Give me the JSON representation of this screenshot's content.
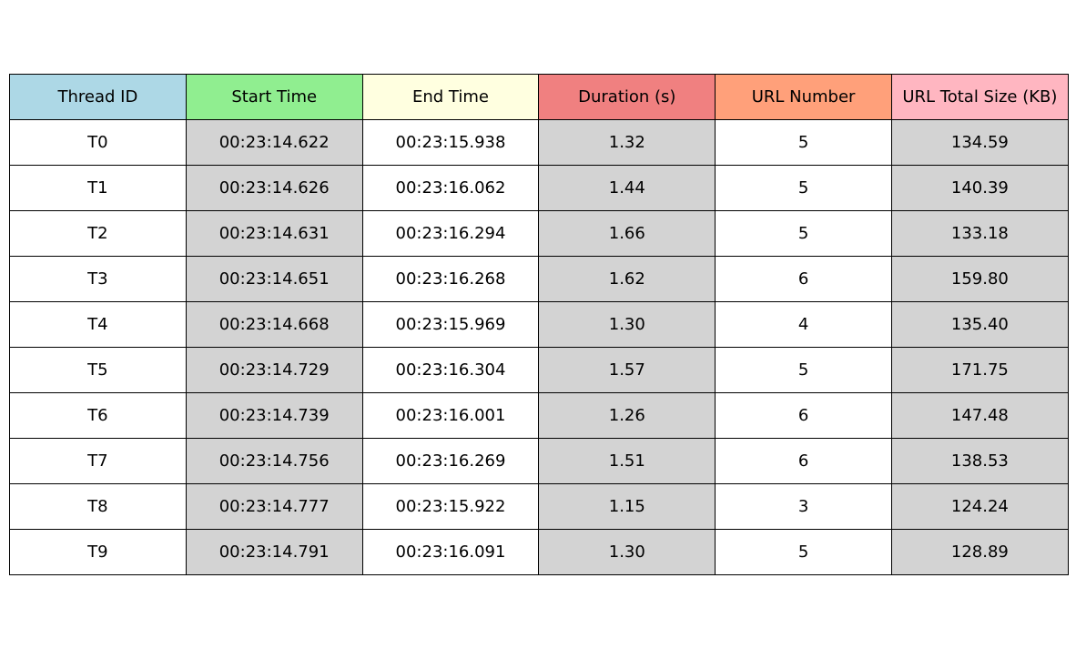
{
  "chart_data": {
    "type": "table",
    "columns": [
      {
        "label": "Thread ID",
        "header_color": "#add8e6",
        "cell_color": "#ffffff"
      },
      {
        "label": "Start Time",
        "header_color": "#90ee90",
        "cell_color": "#d3d3d3"
      },
      {
        "label": "End Time",
        "header_color": "#ffffe0",
        "cell_color": "#ffffff"
      },
      {
        "label": "Duration (s)",
        "header_color": "#f08080",
        "cell_color": "#d3d3d3"
      },
      {
        "label": "URL Number",
        "header_color": "#ffa07a",
        "cell_color": "#ffffff"
      },
      {
        "label": "URL Total Size (KB)",
        "header_color": "#ffb6c1",
        "cell_color": "#d3d3d3"
      }
    ],
    "rows": [
      [
        "T0",
        "00:23:14.622",
        "00:23:15.938",
        "1.32",
        "5",
        "134.59"
      ],
      [
        "T1",
        "00:23:14.626",
        "00:23:16.062",
        "1.44",
        "5",
        "140.39"
      ],
      [
        "T2",
        "00:23:14.631",
        "00:23:16.294",
        "1.66",
        "5",
        "133.18"
      ],
      [
        "T3",
        "00:23:14.651",
        "00:23:16.268",
        "1.62",
        "6",
        "159.80"
      ],
      [
        "T4",
        "00:23:14.668",
        "00:23:15.969",
        "1.30",
        "4",
        "135.40"
      ],
      [
        "T5",
        "00:23:14.729",
        "00:23:16.304",
        "1.57",
        "5",
        "171.75"
      ],
      [
        "T6",
        "00:23:14.739",
        "00:23:16.001",
        "1.26",
        "6",
        "147.48"
      ],
      [
        "T7",
        "00:23:14.756",
        "00:23:16.269",
        "1.51",
        "6",
        "138.53"
      ],
      [
        "T8",
        "00:23:14.777",
        "00:23:15.922",
        "1.15",
        "3",
        "124.24"
      ],
      [
        "T9",
        "00:23:14.791",
        "00:23:16.091",
        "1.30",
        "5",
        "128.89"
      ]
    ]
  }
}
